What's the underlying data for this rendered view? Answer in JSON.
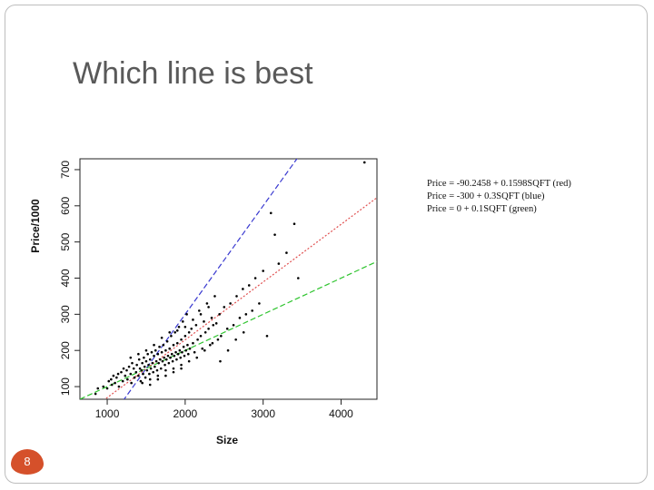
{
  "slide": {
    "title": "Which line is best",
    "number": "8"
  },
  "equations": [
    "Price = -90.2458 + 0.1598SQFT (red)",
    "Price = -300 + 0.3SQFT (blue)",
    "Price = 0 + 0.1SQFT (green)"
  ],
  "chart_data": {
    "type": "scatter",
    "xlabel": "Size",
    "ylabel": "Price/1000",
    "xlim": [
      650,
      4460
    ],
    "ylim": [
      65,
      730
    ],
    "xticks": [
      1000,
      2000,
      3000,
      4000
    ],
    "yticks": [
      100,
      200,
      300,
      400,
      500,
      600,
      700
    ],
    "grid": false,
    "point_color": "#000000",
    "lines": [
      {
        "color": "#e05050",
        "style": "dotted",
        "intercept": -90.2458,
        "slope": 0.1598
      },
      {
        "color": "#3a3ad0",
        "style": "dashed",
        "intercept": -300,
        "slope": 0.3
      },
      {
        "color": "#2ec42e",
        "style": "dashed",
        "intercept": 0,
        "slope": 0.1
      }
    ],
    "points": [
      [
        850,
        80
      ],
      [
        880,
        95
      ],
      [
        950,
        100
      ],
      [
        1000,
        95
      ],
      [
        1020,
        115
      ],
      [
        1050,
        120
      ],
      [
        1060,
        105
      ],
      [
        1080,
        130
      ],
      [
        1100,
        110
      ],
      [
        1120,
        125
      ],
      [
        1140,
        135
      ],
      [
        1150,
        100
      ],
      [
        1180,
        140
      ],
      [
        1200,
        115
      ],
      [
        1210,
        150
      ],
      [
        1230,
        130
      ],
      [
        1250,
        145
      ],
      [
        1260,
        120
      ],
      [
        1280,
        155
      ],
      [
        1300,
        135
      ],
      [
        1310,
        110
      ],
      [
        1320,
        165
      ],
      [
        1340,
        150
      ],
      [
        1350,
        125
      ],
      [
        1370,
        140
      ],
      [
        1380,
        160
      ],
      [
        1400,
        130
      ],
      [
        1410,
        175
      ],
      [
        1420,
        150
      ],
      [
        1430,
        115
      ],
      [
        1440,
        145
      ],
      [
        1450,
        165
      ],
      [
        1460,
        135
      ],
      [
        1470,
        180
      ],
      [
        1480,
        155
      ],
      [
        1490,
        125
      ],
      [
        1500,
        170
      ],
      [
        1510,
        145
      ],
      [
        1520,
        190
      ],
      [
        1530,
        160
      ],
      [
        1540,
        135
      ],
      [
        1550,
        175
      ],
      [
        1560,
        150
      ],
      [
        1570,
        195
      ],
      [
        1580,
        165
      ],
      [
        1590,
        140
      ],
      [
        1600,
        185
      ],
      [
        1610,
        155
      ],
      [
        1620,
        200
      ],
      [
        1630,
        170
      ],
      [
        1640,
        145
      ],
      [
        1650,
        190
      ],
      [
        1660,
        165
      ],
      [
        1670,
        210
      ],
      [
        1680,
        175
      ],
      [
        1690,
        150
      ],
      [
        1700,
        195
      ],
      [
        1710,
        170
      ],
      [
        1720,
        215
      ],
      [
        1730,
        180
      ],
      [
        1740,
        160
      ],
      [
        1750,
        200
      ],
      [
        1760,
        175
      ],
      [
        1770,
        225
      ],
      [
        1780,
        185
      ],
      [
        1790,
        165
      ],
      [
        1800,
        205
      ],
      [
        1810,
        180
      ],
      [
        1820,
        240
      ],
      [
        1830,
        190
      ],
      [
        1840,
        170
      ],
      [
        1850,
        215
      ],
      [
        1860,
        185
      ],
      [
        1870,
        250
      ],
      [
        1880,
        195
      ],
      [
        1890,
        175
      ],
      [
        1900,
        220
      ],
      [
        1910,
        190
      ],
      [
        1920,
        265
      ],
      [
        1930,
        200
      ],
      [
        1940,
        180
      ],
      [
        1950,
        230
      ],
      [
        1960,
        195
      ],
      [
        1970,
        280
      ],
      [
        1980,
        210
      ],
      [
        1990,
        185
      ],
      [
        2000,
        240
      ],
      [
        2010,
        200
      ],
      [
        2020,
        300
      ],
      [
        2030,
        215
      ],
      [
        2040,
        190
      ],
      [
        2050,
        250
      ],
      [
        2060,
        205
      ],
      [
        2080,
        260
      ],
      [
        2100,
        220
      ],
      [
        2120,
        195
      ],
      [
        2140,
        270
      ],
      [
        2160,
        230
      ],
      [
        2180,
        310
      ],
      [
        2200,
        240
      ],
      [
        2220,
        205
      ],
      [
        2240,
        280
      ],
      [
        2260,
        250
      ],
      [
        2280,
        330
      ],
      [
        2300,
        260
      ],
      [
        2320,
        215
      ],
      [
        2340,
        290
      ],
      [
        2360,
        270
      ],
      [
        2380,
        350
      ],
      [
        2400,
        275
      ],
      [
        2420,
        230
      ],
      [
        2440,
        300
      ],
      [
        2460,
        240
      ],
      [
        2500,
        320
      ],
      [
        2540,
        260
      ],
      [
        2580,
        330
      ],
      [
        2620,
        270
      ],
      [
        2660,
        350
      ],
      [
        2700,
        290
      ],
      [
        2740,
        370
      ],
      [
        2780,
        300
      ],
      [
        2820,
        380
      ],
      [
        2860,
        310
      ],
      [
        2900,
        400
      ],
      [
        2950,
        330
      ],
      [
        3000,
        420
      ],
      [
        3050,
        240
      ],
      [
        3100,
        580
      ],
      [
        3150,
        520
      ],
      [
        3200,
        440
      ],
      [
        3300,
        470
      ],
      [
        3400,
        550
      ],
      [
        3450,
        400
      ],
      [
        4300,
        720
      ],
      [
        1550,
        120
      ],
      [
        1650,
        130
      ],
      [
        1750,
        145
      ],
      [
        1850,
        150
      ],
      [
        1950,
        160
      ],
      [
        2050,
        170
      ],
      [
        2150,
        180
      ],
      [
        2250,
        200
      ],
      [
        2350,
        220
      ],
      [
        2450,
        170
      ],
      [
        2550,
        200
      ],
      [
        2650,
        230
      ],
      [
        2750,
        250
      ],
      [
        1300,
        180
      ],
      [
        1400,
        190
      ],
      [
        1500,
        200
      ],
      [
        1600,
        215
      ],
      [
        1700,
        235
      ],
      [
        1800,
        250
      ],
      [
        1900,
        255
      ],
      [
        2000,
        265
      ],
      [
        2100,
        285
      ],
      [
        2200,
        300
      ],
      [
        2300,
        320
      ],
      [
        1450,
        110
      ],
      [
        1550,
        105
      ],
      [
        1650,
        120
      ],
      [
        1750,
        130
      ],
      [
        1850,
        140
      ],
      [
        1950,
        150
      ]
    ]
  }
}
